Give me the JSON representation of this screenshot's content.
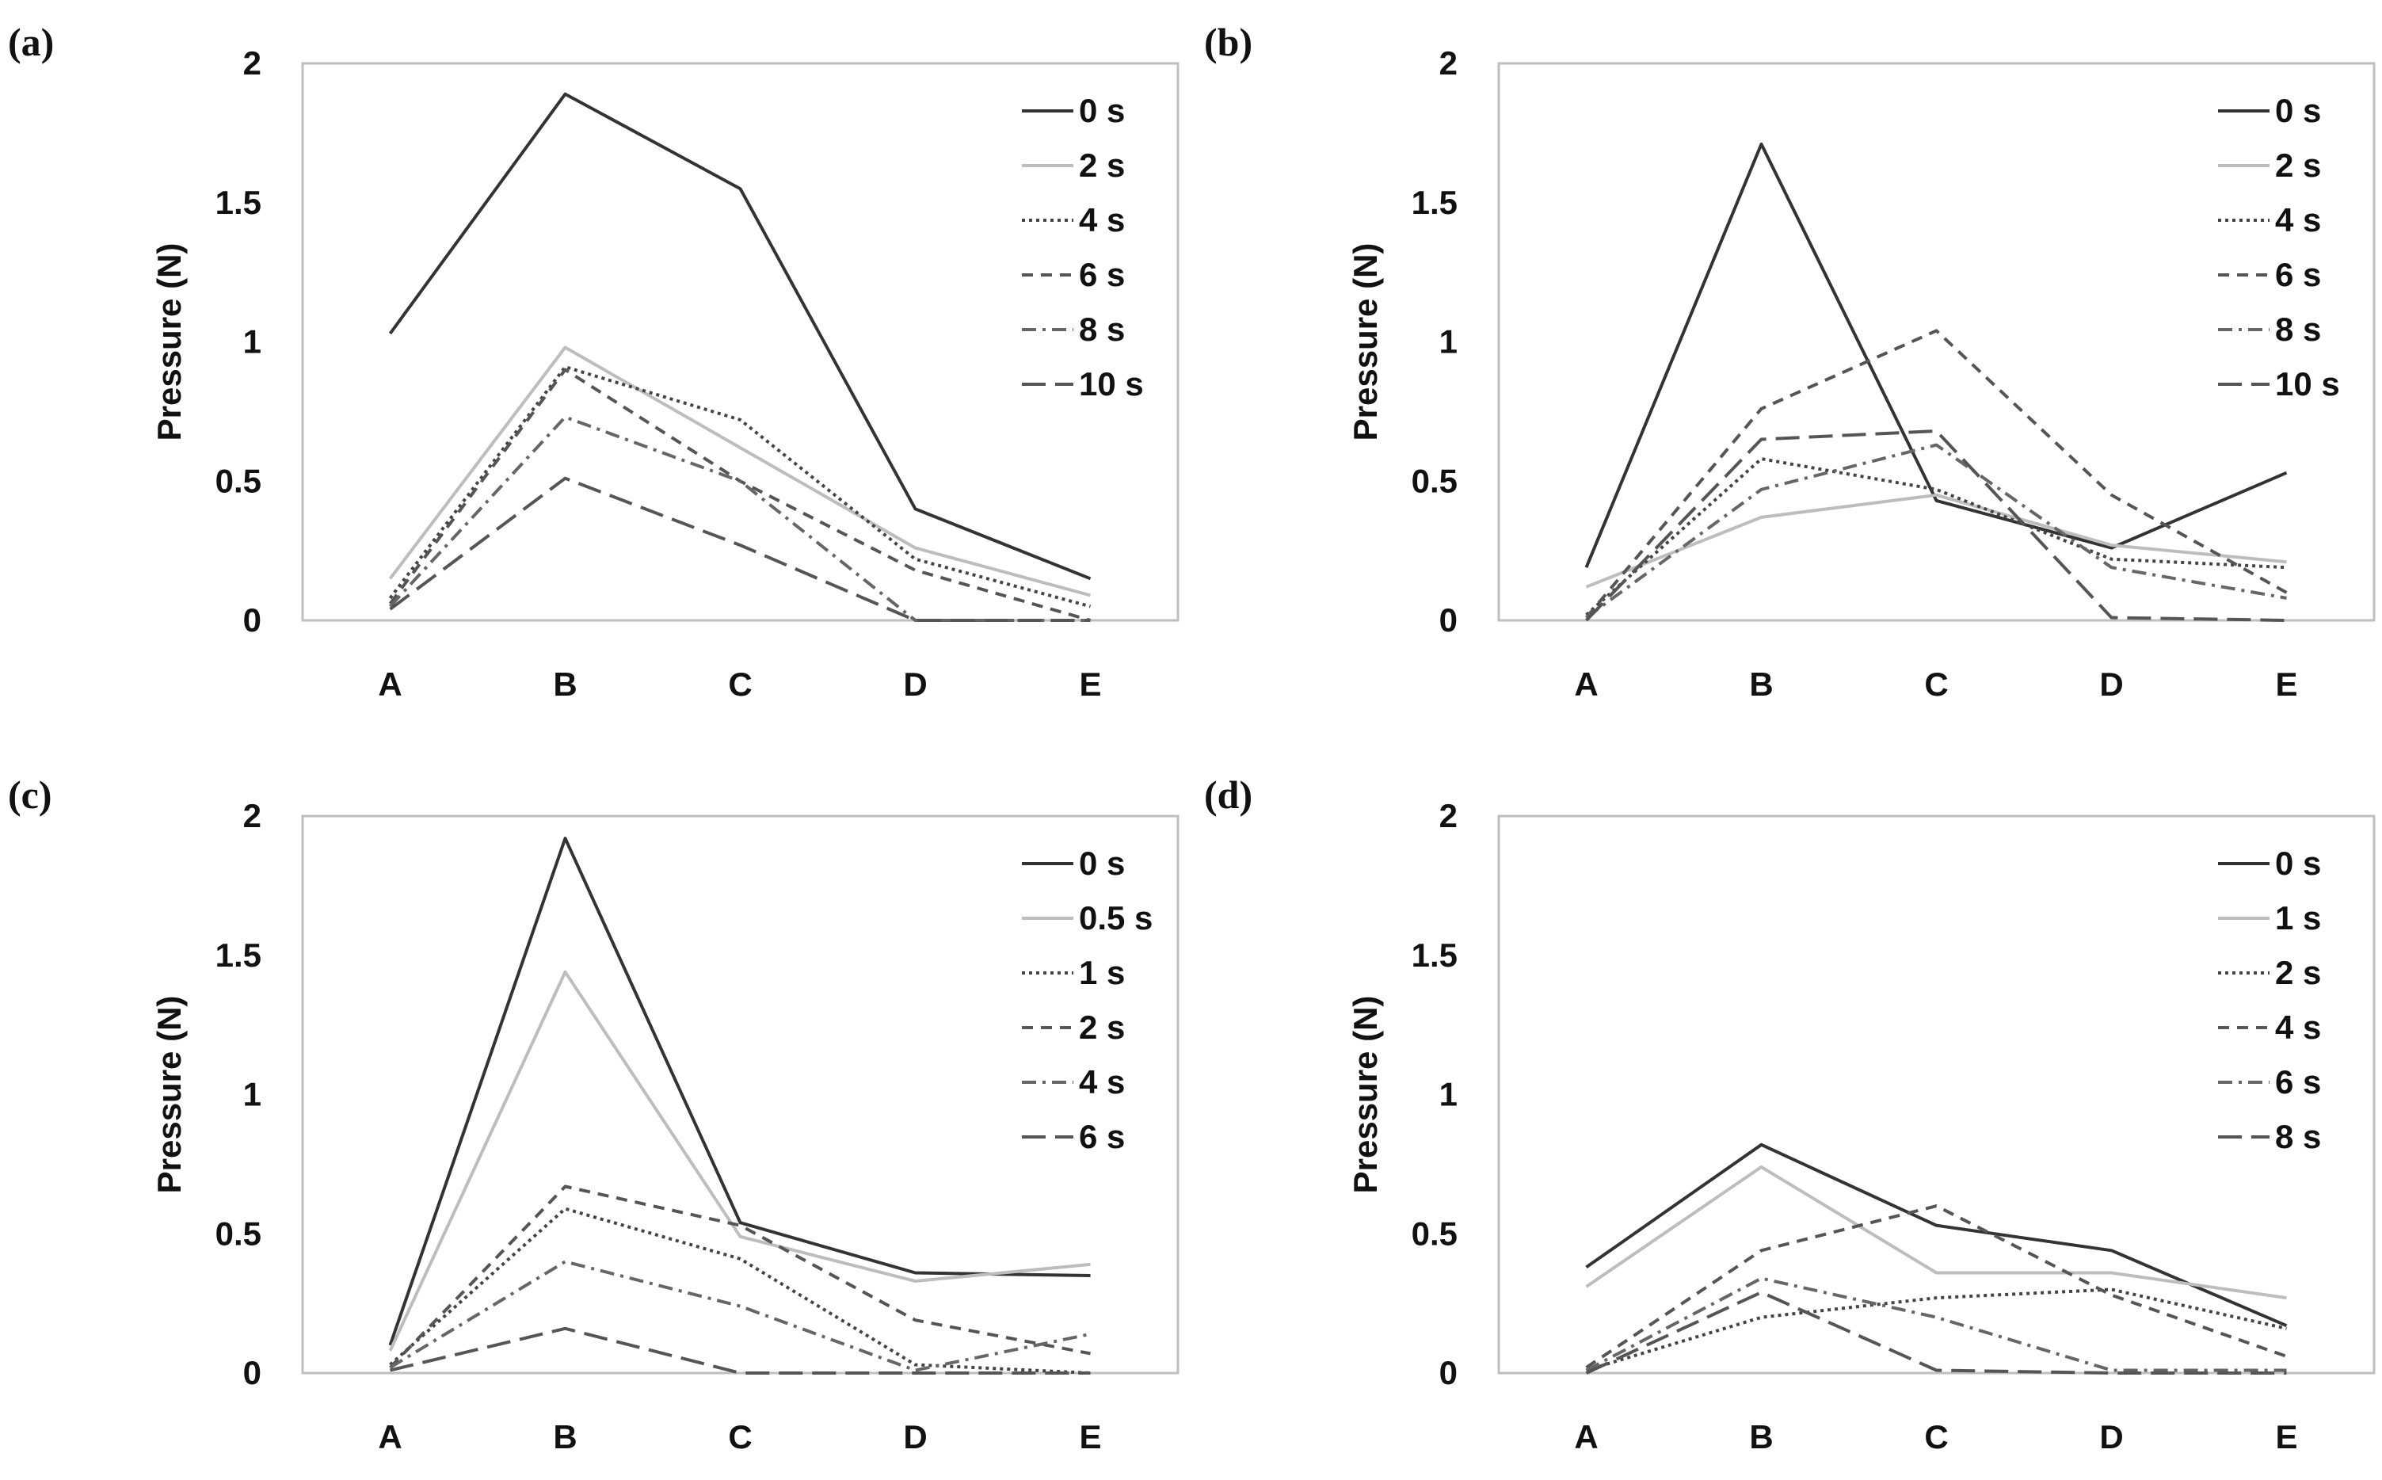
{
  "figure": {
    "style_colors": {
      "dark": "#333333",
      "light": "#bdbdbd",
      "mid": "#555555",
      "frame": "#bfbfbf"
    },
    "line_styles": {
      "solid_dark": {
        "color": "#333333",
        "dash": ""
      },
      "solid_light": {
        "color": "#bdbdbd",
        "dash": ""
      },
      "dotted": {
        "color": "#444444",
        "dash": "4,5"
      },
      "dashed": {
        "color": "#555555",
        "dash": "14,10"
      },
      "dashdot": {
        "color": "#666666",
        "dash": "18,8,4,8"
      },
      "longdash": {
        "color": "#555555",
        "dash": "30,12"
      }
    }
  },
  "chart_data": [
    {
      "panel": "(a)",
      "type": "line",
      "categories": [
        "A",
        "B",
        "C",
        "D",
        "E"
      ],
      "ylabel": "Pressure (N)",
      "xlabel": "",
      "ylim": [
        0,
        2
      ],
      "yticks": [
        "0",
        "0.5",
        "1",
        "1.5",
        "2"
      ],
      "legend_position": "top-right",
      "series": [
        {
          "name": "0 s",
          "style": "solid_dark",
          "values": [
            1.03,
            1.89,
            1.55,
            0.4,
            0.15
          ]
        },
        {
          "name": "2 s",
          "style": "solid_light",
          "values": [
            0.15,
            0.98,
            0.62,
            0.26,
            0.09
          ]
        },
        {
          "name": "4 s",
          "style": "dotted",
          "values": [
            0.08,
            0.91,
            0.72,
            0.22,
            0.05
          ]
        },
        {
          "name": "6 s",
          "style": "dashed",
          "values": [
            0.06,
            0.9,
            0.5,
            0.18,
            0.0
          ]
        },
        {
          "name": "8 s",
          "style": "dashdot",
          "values": [
            0.05,
            0.73,
            0.5,
            0.0,
            0.0
          ]
        },
        {
          "name": "10 s",
          "style": "longdash",
          "values": [
            0.04,
            0.51,
            0.27,
            0.0,
            0.0
          ]
        }
      ]
    },
    {
      "panel": "(b)",
      "type": "line",
      "categories": [
        "A",
        "B",
        "C",
        "D",
        "E"
      ],
      "ylabel": "Pressure (N)",
      "xlabel": "",
      "ylim": [
        0,
        2
      ],
      "yticks": [
        "0",
        "0.5",
        "1",
        "1.5",
        "2"
      ],
      "legend_position": "top-right",
      "series": [
        {
          "name": "0 s",
          "style": "solid_dark",
          "values": [
            0.19,
            1.71,
            0.43,
            0.26,
            0.53
          ]
        },
        {
          "name": "2 s",
          "style": "solid_light",
          "values": [
            0.12,
            0.37,
            0.45,
            0.27,
            0.21
          ]
        },
        {
          "name": "4 s",
          "style": "dotted",
          "values": [
            0.02,
            0.58,
            0.47,
            0.22,
            0.19
          ]
        },
        {
          "name": "6 s",
          "style": "dashed",
          "values": [
            0.01,
            0.76,
            1.04,
            0.45,
            0.1
          ]
        },
        {
          "name": "8 s",
          "style": "dashdot",
          "values": [
            0.01,
            0.47,
            0.63,
            0.19,
            0.08
          ]
        },
        {
          "name": "10 s",
          "style": "longdash",
          "values": [
            0.0,
            0.65,
            0.68,
            0.01,
            0.0
          ]
        }
      ]
    },
    {
      "panel": "(c)",
      "type": "line",
      "categories": [
        "A",
        "B",
        "C",
        "D",
        "E"
      ],
      "ylabel": "Pressure (N)",
      "xlabel": "",
      "ylim": [
        0,
        2
      ],
      "yticks": [
        "0",
        "0.5",
        "1",
        "1.5",
        "2"
      ],
      "legend_position": "top-right",
      "series": [
        {
          "name": "0 s",
          "style": "solid_dark",
          "values": [
            0.1,
            1.92,
            0.54,
            0.36,
            0.35
          ]
        },
        {
          "name": "0.5 s",
          "style": "solid_light",
          "values": [
            0.08,
            1.44,
            0.49,
            0.33,
            0.39
          ]
        },
        {
          "name": "1 s",
          "style": "dotted",
          "values": [
            0.03,
            0.59,
            0.41,
            0.03,
            0.0
          ]
        },
        {
          "name": "2 s",
          "style": "dashed",
          "values": [
            0.02,
            0.67,
            0.53,
            0.19,
            0.07
          ]
        },
        {
          "name": "4 s",
          "style": "dashdot",
          "values": [
            0.02,
            0.4,
            0.24,
            0.01,
            0.14
          ]
        },
        {
          "name": "6 s",
          "style": "longdash",
          "values": [
            0.01,
            0.16,
            0.0,
            0.0,
            0.0
          ]
        }
      ]
    },
    {
      "panel": "(d)",
      "type": "line",
      "categories": [
        "A",
        "B",
        "C",
        "D",
        "E"
      ],
      "ylabel": "Pressure (N)",
      "xlabel": "",
      "ylim": [
        0,
        2
      ],
      "yticks": [
        "0",
        "0.5",
        "1",
        "1.5",
        "2"
      ],
      "legend_position": "top-right",
      "series": [
        {
          "name": "0 s",
          "style": "solid_dark",
          "values": [
            0.38,
            0.82,
            0.53,
            0.44,
            0.17
          ]
        },
        {
          "name": "1 s",
          "style": "solid_light",
          "values": [
            0.31,
            0.74,
            0.36,
            0.36,
            0.27
          ]
        },
        {
          "name": "2 s",
          "style": "dotted",
          "values": [
            0.01,
            0.2,
            0.27,
            0.3,
            0.16
          ]
        },
        {
          "name": "4 s",
          "style": "dashed",
          "values": [
            0.02,
            0.44,
            0.6,
            0.28,
            0.06
          ]
        },
        {
          "name": "6 s",
          "style": "dashdot",
          "values": [
            0.01,
            0.34,
            0.2,
            0.01,
            0.01
          ]
        },
        {
          "name": "8 s",
          "style": "longdash",
          "values": [
            0.0,
            0.29,
            0.01,
            0.0,
            0.0
          ]
        }
      ]
    }
  ]
}
